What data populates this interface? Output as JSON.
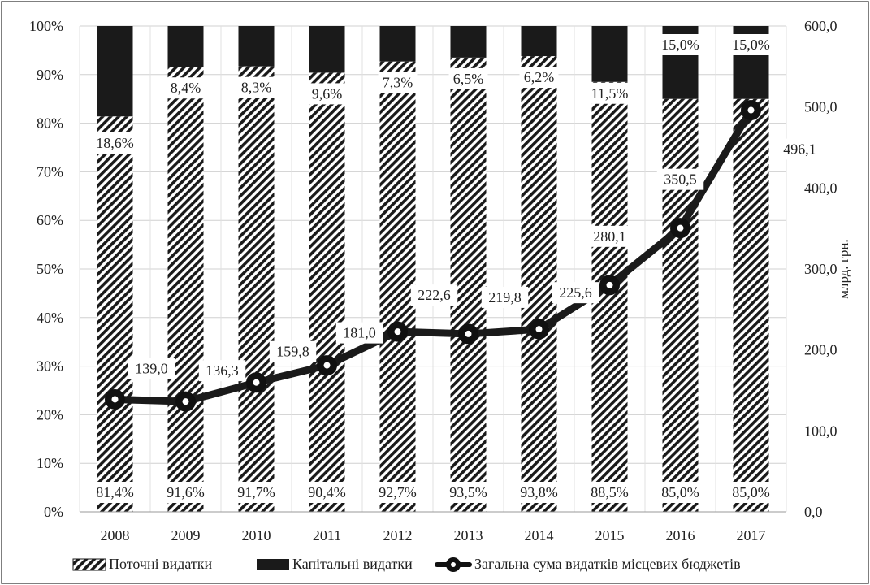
{
  "chart_data": {
    "type": "bar",
    "stacked": true,
    "categories": [
      "2008",
      "2009",
      "2010",
      "2011",
      "2012",
      "2013",
      "2014",
      "2015",
      "2016",
      "2017"
    ],
    "series": [
      {
        "name": "Поточні видатки",
        "type": "bar",
        "axis": "left",
        "pattern": "diagonal-hatch",
        "values": [
          81.4,
          91.6,
          91.7,
          90.4,
          92.7,
          93.5,
          93.8,
          88.5,
          85.0,
          85.0
        ],
        "labels": [
          "81,4%",
          "91,6%",
          "91,7%",
          "90,4%",
          "92,7%",
          "93,5%",
          "93,8%",
          "88,5%",
          "85,0%",
          "85,0%"
        ]
      },
      {
        "name": "Капітальні видатки",
        "type": "bar",
        "axis": "left",
        "color": "#1a1a1a",
        "values": [
          18.6,
          8.4,
          8.3,
          9.6,
          7.3,
          6.5,
          6.2,
          11.5,
          15.0,
          15.0
        ],
        "labels": [
          "18,6%",
          "8,4%",
          "8,3%",
          "9,6%",
          "7,3%",
          "6,5%",
          "6,2%",
          "11,5%",
          "15,0%",
          "15,0%"
        ]
      },
      {
        "name": "Загальна сума видатків місцевих бюджетів",
        "type": "line",
        "axis": "right",
        "color": "#1a1a1a",
        "values": [
          139.0,
          136.3,
          159.8,
          181.0,
          222.6,
          219.8,
          225.6,
          280.1,
          350.5,
          496.1
        ],
        "labels": [
          "139,0",
          "136,3",
          "159,8",
          "181,0",
          "222,6",
          "219,8",
          "225,6",
          "280,1",
          "350,5",
          "496,1"
        ]
      }
    ],
    "y_left": {
      "min": 0,
      "max": 100,
      "ticks": [
        "0%",
        "10%",
        "20%",
        "30%",
        "40%",
        "50%",
        "60%",
        "70%",
        "80%",
        "90%",
        "100%"
      ]
    },
    "y_right": {
      "min": 0,
      "max": 600,
      "ticks": [
        "0,0",
        "100,0",
        "200,0",
        "300,0",
        "400,0",
        "500,0",
        "600,0"
      ],
      "label": "млрд. грн."
    },
    "grid": true,
    "legend_position": "bottom"
  }
}
